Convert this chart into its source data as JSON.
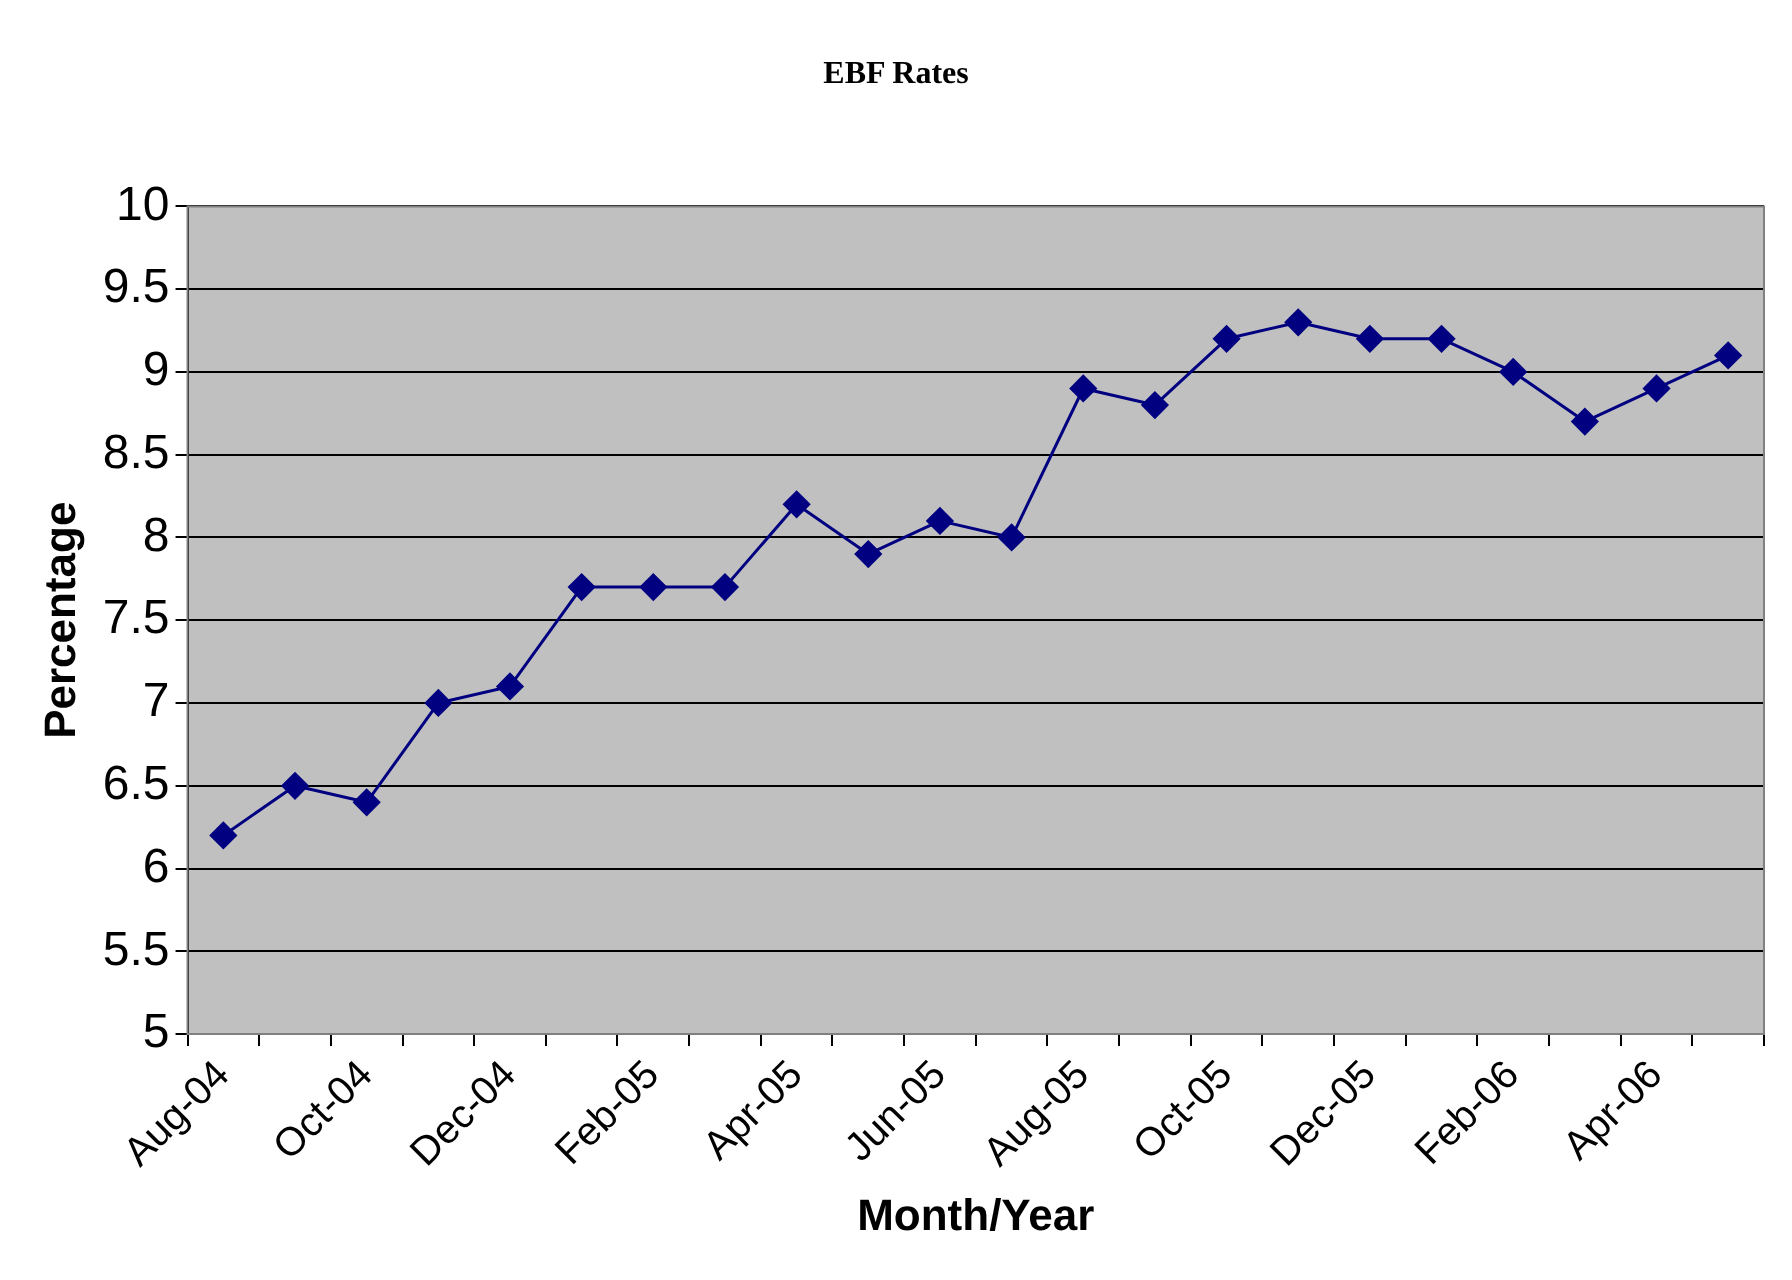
{
  "chart_data": {
    "type": "line",
    "title": "EBF Rates",
    "xlabel": "Month/Year",
    "ylabel": "Percentage",
    "categories": [
      "Aug-04",
      null,
      "Oct-04",
      null,
      "Dec-04",
      null,
      "Feb-05",
      null,
      "Apr-05",
      null,
      "Jun-05",
      null,
      "Aug-05",
      null,
      "Oct-05",
      null,
      "Dec-05",
      null,
      "Feb-06",
      null,
      "Apr-06",
      null
    ],
    "series": [
      {
        "color": "#000080",
        "values": [
          6.2,
          6.5,
          6.4,
          7.0,
          7.1,
          7.7,
          7.7,
          7.7,
          8.2,
          7.9,
          8.1,
          8.0,
          8.9,
          8.8,
          9.2,
          9.3,
          9.2,
          9.2,
          9.0,
          8.7,
          8.9,
          9.1
        ]
      }
    ],
    "ylim": [
      5,
      10
    ],
    "yticks": [
      5,
      5.5,
      6,
      6.5,
      7,
      7.5,
      8,
      8.5,
      9,
      9.5,
      10
    ],
    "grid": "y",
    "legend": false,
    "marker": "diamond",
    "line_style": "solid"
  }
}
